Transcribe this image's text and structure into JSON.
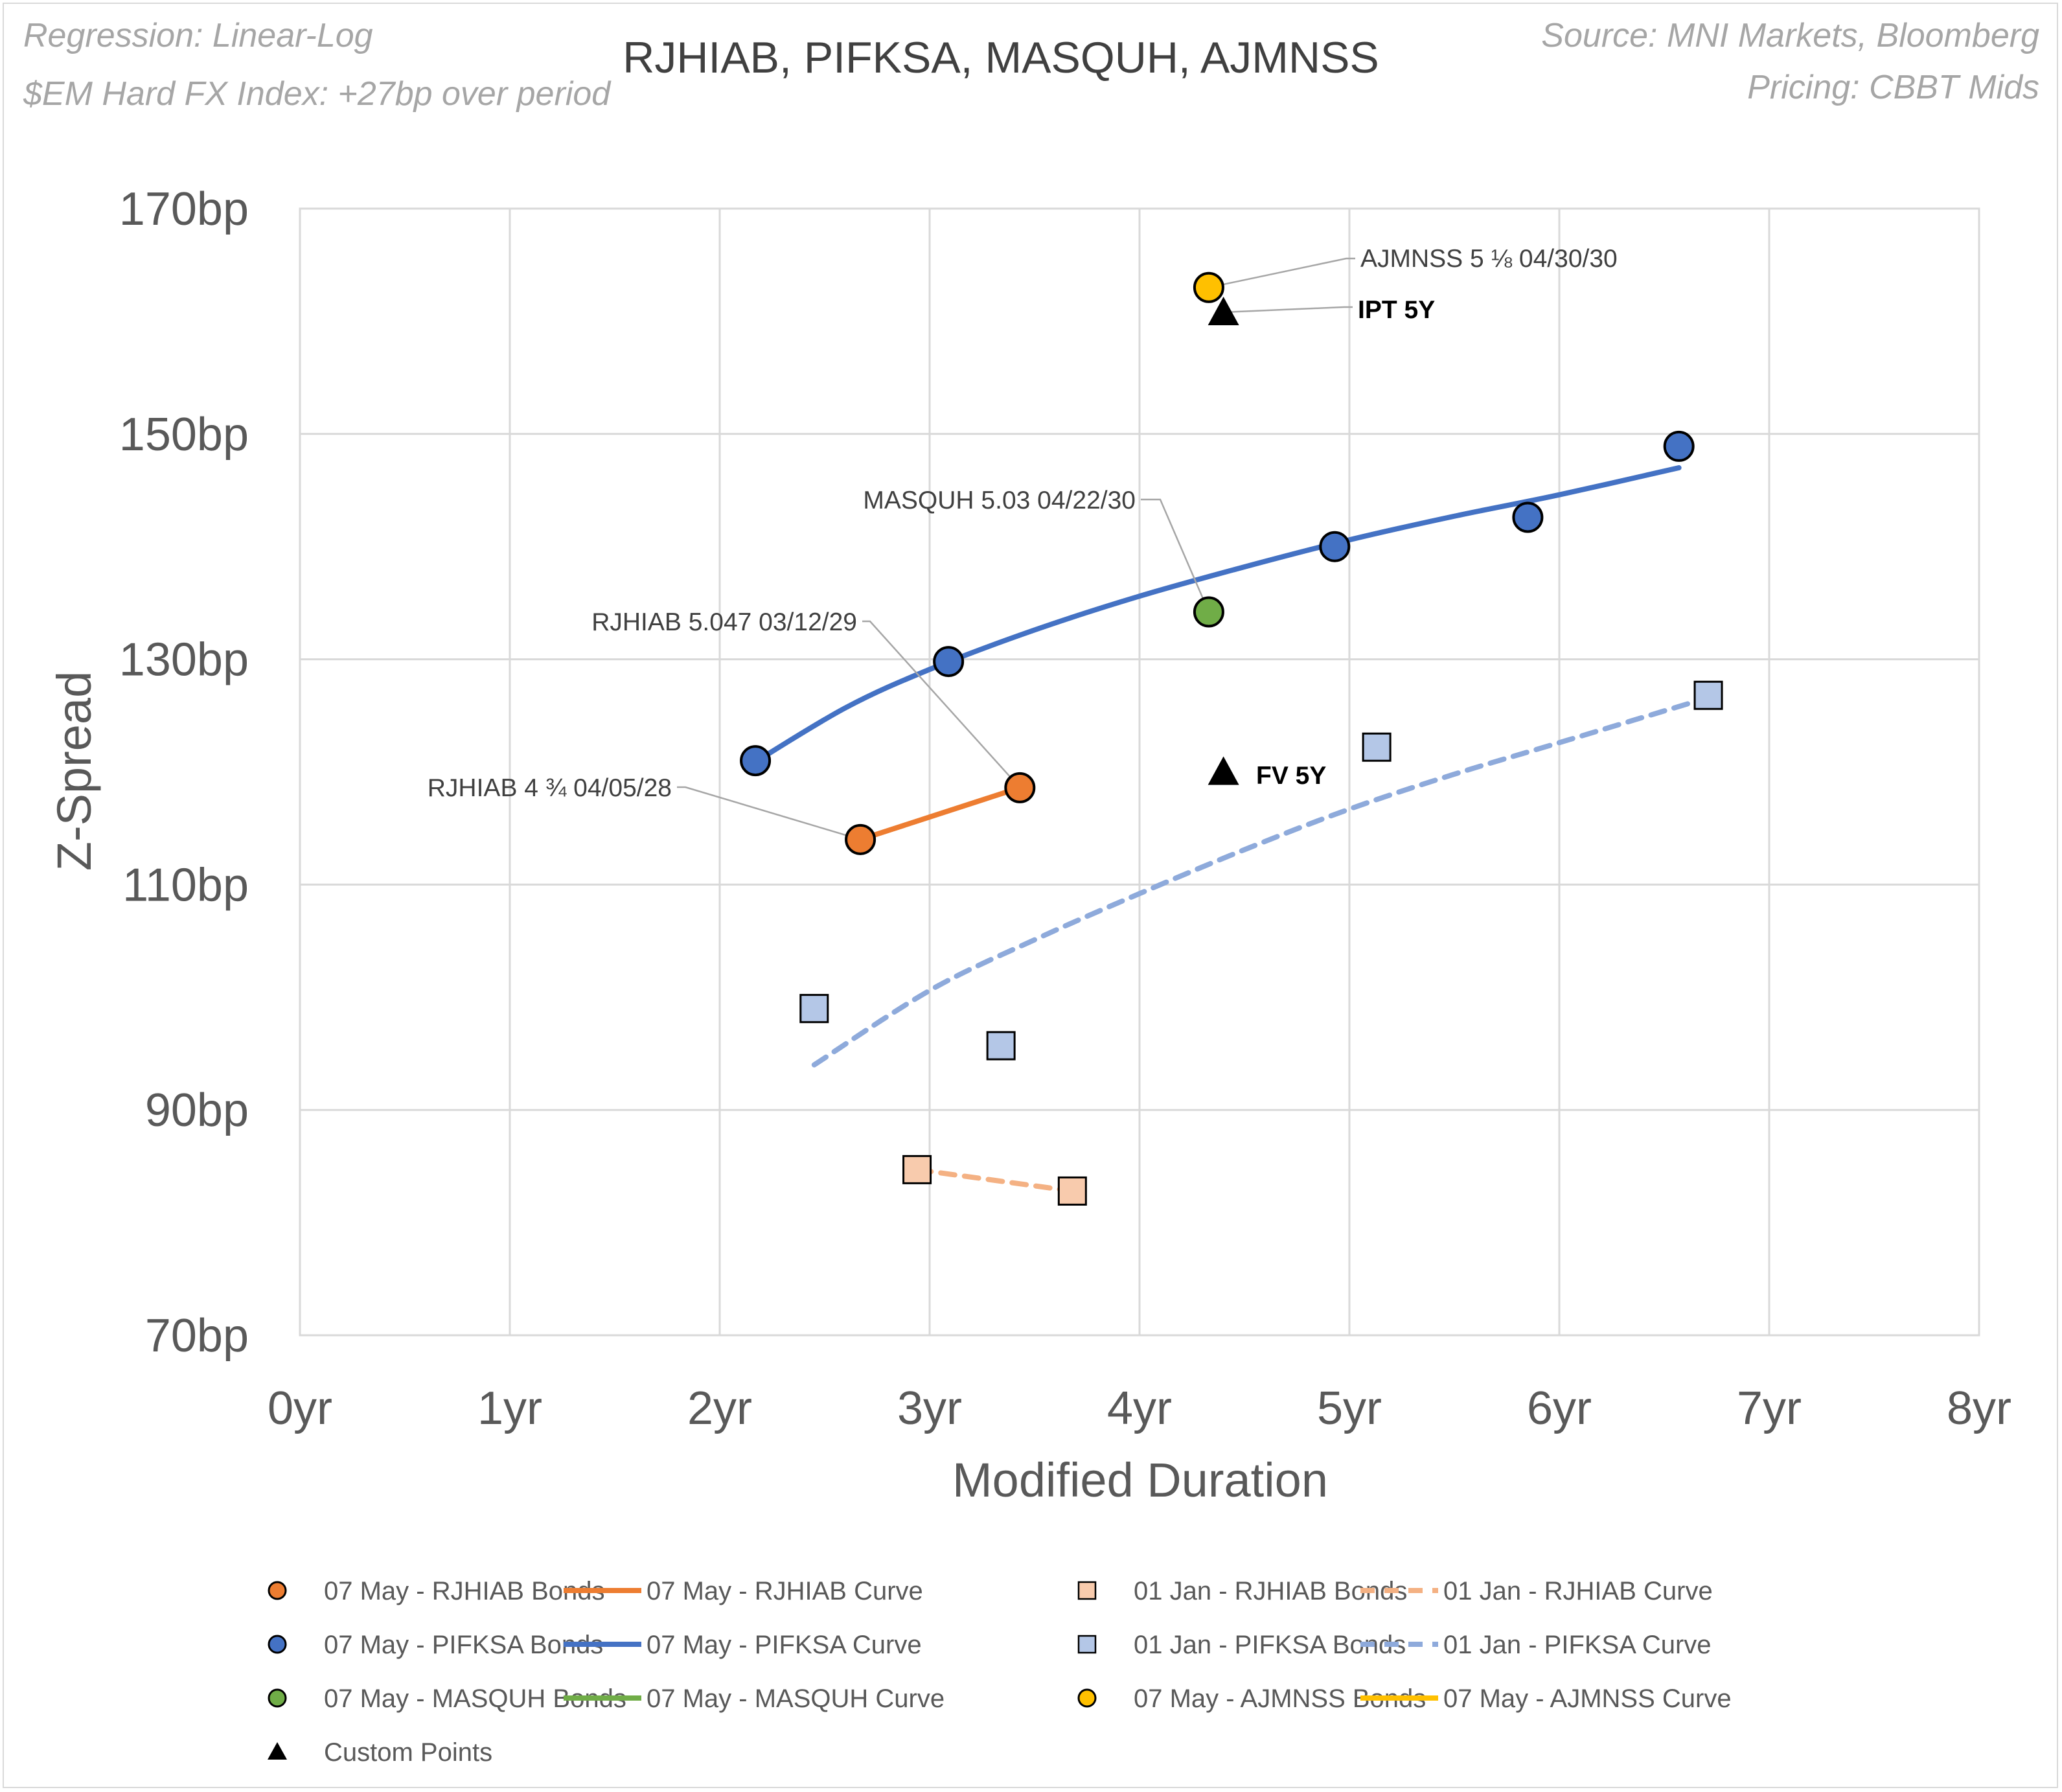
{
  "notes": {
    "regression": "Regression: Linear-Log",
    "index": "$EM Hard FX Index: +27bp over period",
    "source": "Source: MNI Markets, Bloomberg",
    "pricing": "Pricing: CBBT Mids"
  },
  "colors": {
    "rjhiab": "#ed7d31",
    "rjhiab_jan": "#f8cbad",
    "pifksa": "#4472c4",
    "pifksa_jan": "#b4c7e7",
    "pifksa_jan_curve": "#8eaadb",
    "masquh": "#70ad47",
    "ajmnss": "#ffc000",
    "custom": "#000000",
    "grid": "#d9d9d9"
  },
  "chart_data": {
    "type": "scatter",
    "title": "RJHIAB, PIFKSA, MASQUH, AJMNSS",
    "xlabel": "Modified Duration",
    "ylabel": "Z-Spread",
    "xlim": [
      0,
      8
    ],
    "ylim": [
      70,
      170
    ],
    "x_ticks": [
      0,
      1,
      2,
      3,
      4,
      5,
      6,
      7,
      8
    ],
    "x_tick_labels": [
      "0yr",
      "1yr",
      "2yr",
      "3yr",
      "4yr",
      "5yr",
      "6yr",
      "7yr",
      "8yr"
    ],
    "y_ticks": [
      70,
      90,
      110,
      130,
      150,
      170
    ],
    "y_tick_labels": [
      "70bp",
      "90bp",
      "110bp",
      "130bp",
      "150bp",
      "170bp"
    ],
    "grid": true,
    "legend_position": "bottom",
    "series": [
      {
        "name": "07 May - RJHIAB Bonds",
        "kind": "points",
        "marker": "circle",
        "color": "#ed7d31",
        "points": [
          [
            2.67,
            114.0
          ],
          [
            3.43,
            118.6
          ]
        ]
      },
      {
        "name": "07 May - RJHIAB Curve",
        "kind": "line",
        "color": "#ed7d31",
        "dash": false,
        "points": [
          [
            2.67,
            114.0
          ],
          [
            3.43,
            118.6
          ]
        ]
      },
      {
        "name": "01 Jan - RJHIAB Bonds",
        "kind": "points",
        "marker": "square",
        "color": "#f8cbad",
        "points": [
          [
            2.94,
            84.7
          ],
          [
            3.68,
            82.8
          ]
        ]
      },
      {
        "name": "01 Jan - RJHIAB Curve",
        "kind": "line",
        "color": "#f4b183",
        "dash": true,
        "points": [
          [
            2.94,
            84.7
          ],
          [
            3.68,
            82.8
          ]
        ]
      },
      {
        "name": "07 May - PIFKSA Bonds",
        "kind": "points",
        "marker": "circle",
        "color": "#4472c4",
        "points": [
          [
            2.17,
            121.0
          ],
          [
            3.09,
            129.8
          ],
          [
            4.93,
            140.0
          ],
          [
            5.85,
            142.6
          ],
          [
            6.57,
            148.9
          ]
        ]
      },
      {
        "name": "07 May - PIFKSA Curve",
        "kind": "line",
        "color": "#4472c4",
        "dash": false,
        "points": [
          [
            2.17,
            120.9
          ],
          [
            2.6,
            125.7
          ],
          [
            3.0,
            129.1
          ],
          [
            3.5,
            132.6
          ],
          [
            4.0,
            135.6
          ],
          [
            4.5,
            138.2
          ],
          [
            5.0,
            140.6
          ],
          [
            5.5,
            142.7
          ],
          [
            6.0,
            144.6
          ],
          [
            6.57,
            147.0
          ]
        ]
      },
      {
        "name": "01 Jan - PIFKSA Bonds",
        "kind": "points",
        "marker": "square",
        "color": "#b4c7e7",
        "points": [
          [
            2.45,
            99.0
          ],
          [
            3.34,
            95.7
          ],
          [
            5.13,
            122.2
          ],
          [
            6.71,
            126.8
          ]
        ]
      },
      {
        "name": "01 Jan - PIFKSA Curve",
        "kind": "line",
        "color": "#8eaadb",
        "dash": true,
        "points": [
          [
            2.45,
            94.0
          ],
          [
            3.0,
            100.6
          ],
          [
            3.5,
            105.1
          ],
          [
            4.0,
            109.2
          ],
          [
            4.5,
            113.1
          ],
          [
            5.0,
            116.7
          ],
          [
            5.5,
            119.8
          ],
          [
            6.0,
            122.6
          ],
          [
            6.71,
            126.6
          ]
        ]
      },
      {
        "name": "07 May - MASQUH Bonds",
        "kind": "points",
        "marker": "circle",
        "color": "#70ad47",
        "points": [
          [
            4.33,
            134.2
          ]
        ]
      },
      {
        "name": "07 May - MASQUH Curve",
        "kind": "line",
        "color": "#70ad47",
        "dash": false,
        "points": []
      },
      {
        "name": "07 May - AJMNSS Bonds",
        "kind": "points",
        "marker": "circle",
        "color": "#ffc000",
        "points": [
          [
            4.33,
            163.0
          ]
        ]
      },
      {
        "name": "07 May - AJMNSS Curve",
        "kind": "line",
        "color": "#ffc000",
        "dash": false,
        "points": []
      },
      {
        "name": "Custom Points",
        "kind": "points",
        "marker": "triangle",
        "color": "#000000",
        "points": [
          [
            4.4,
            160.8
          ],
          [
            4.4,
            120.0
          ]
        ]
      }
    ],
    "annotations": [
      {
        "text": "AJMNSS 5 ⅛ 04/30/30",
        "bold": false,
        "target": [
          4.33,
          163.0
        ]
      },
      {
        "text": "IPT 5Y",
        "bold": true,
        "target": [
          4.4,
          160.8
        ]
      },
      {
        "text": "MASQUH 5.03 04/22/30",
        "bold": false,
        "target": [
          4.33,
          134.2
        ]
      },
      {
        "text": "RJHIAB 5.047 03/12/29",
        "bold": false,
        "target": [
          3.43,
          118.6
        ]
      },
      {
        "text": "RJHIAB 4 ¾ 04/05/28",
        "bold": false,
        "target": [
          2.67,
          114.0
        ]
      },
      {
        "text": "FV 5Y",
        "bold": true,
        "target": [
          4.4,
          120.0
        ]
      }
    ]
  }
}
